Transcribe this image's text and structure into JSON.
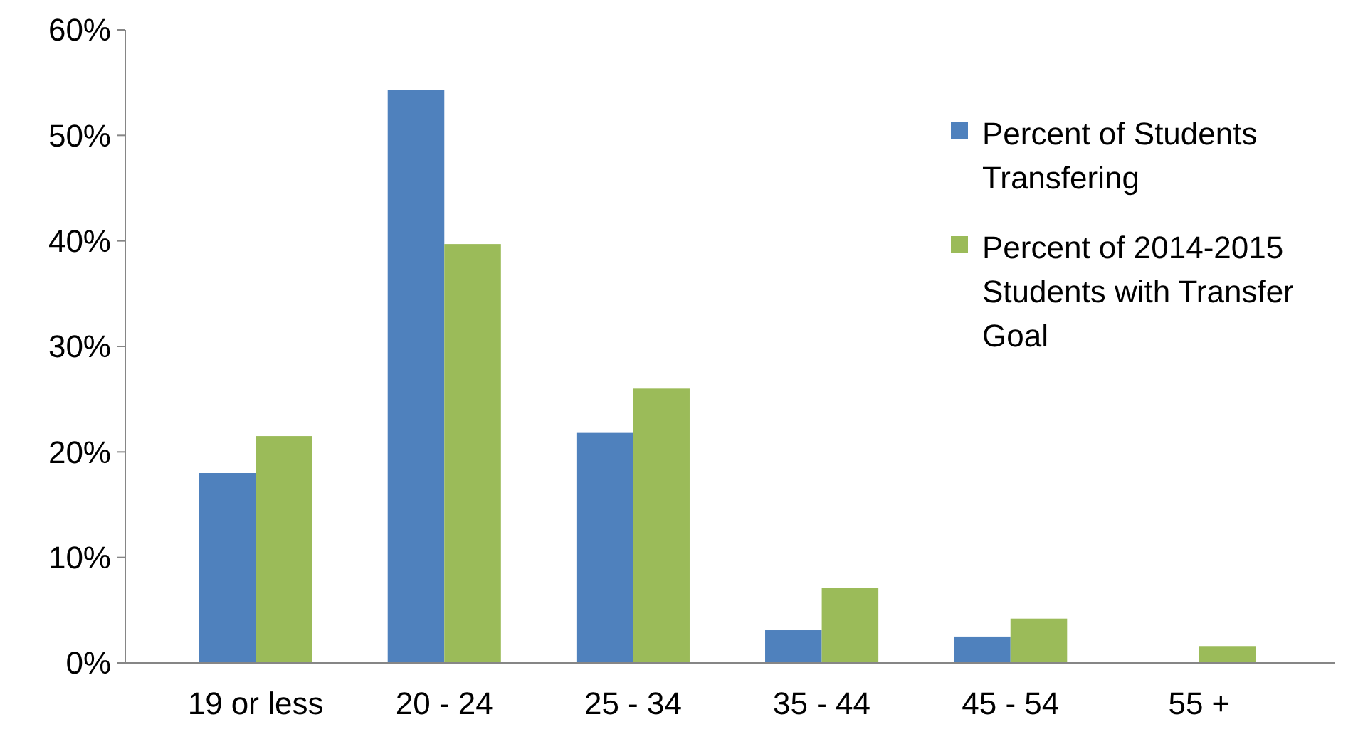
{
  "chart_data": {
    "type": "bar",
    "categories": [
      "19 or less",
      "20 - 24",
      "25 - 34",
      "35 - 44",
      "45 - 54",
      "55 +"
    ],
    "series": [
      {
        "name": "Percent of Students Transfering",
        "color": "#4f81bd",
        "values": [
          18,
          54.3,
          21.8,
          3.1,
          2.5,
          null
        ]
      },
      {
        "name": "Percent of 2014-2015 Students with Transfer Goal",
        "color": "#9bbb59",
        "values": [
          21.5,
          39.7,
          26,
          7.1,
          4.2,
          1.6
        ]
      }
    ],
    "ylim": [
      0,
      60
    ],
    "yticks": [
      {
        "value": 0,
        "label": "0%"
      },
      {
        "value": 10,
        "label": "10%"
      },
      {
        "value": 20,
        "label": "20%"
      },
      {
        "value": 30,
        "label": "30%"
      },
      {
        "value": 40,
        "label": "40%"
      },
      {
        "value": 50,
        "label": "50%"
      },
      {
        "value": 60,
        "label": "60%"
      }
    ],
    "grid": false,
    "legend": "top right"
  }
}
